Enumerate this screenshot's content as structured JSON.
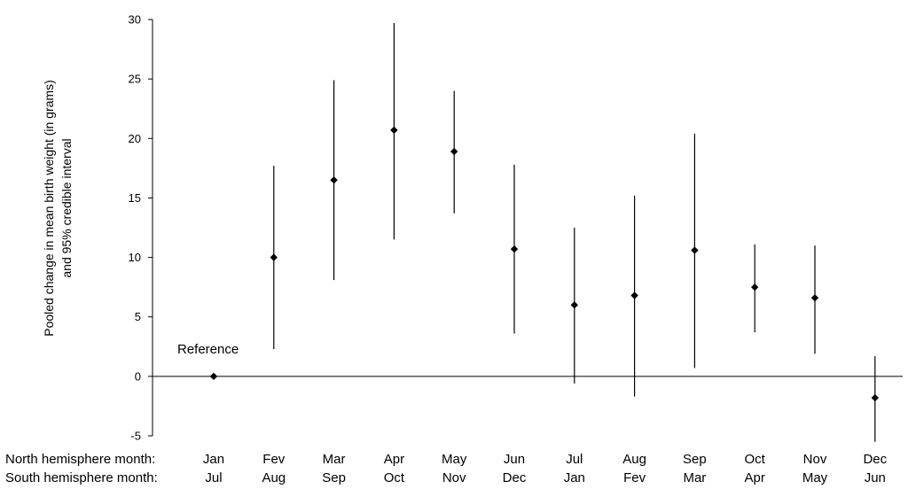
{
  "chart_data": {
    "type": "scatter",
    "xlabel": "",
    "ylabel_line1": "Pooled change in mean birth weight (in grams)",
    "ylabel_line2": "and  95% credible interval",
    "ylim": [
      -5,
      30
    ],
    "yticks": [
      -5,
      0,
      5,
      10,
      15,
      20,
      25,
      30
    ],
    "grid": false,
    "row_labels": {
      "north": "North hemisphere month:",
      "south": "South hemisphere month:"
    },
    "categories_north": [
      "Jan",
      "Fev",
      "Mar",
      "Apr",
      "May",
      "Jun",
      "Jul",
      "Aug",
      "Sep",
      "Oct",
      "Nov",
      "Dec"
    ],
    "categories_south": [
      "Jul",
      "Aug",
      "Sep",
      "Oct",
      "Nov",
      "Dec",
      "Jan",
      "Fev",
      "Mar",
      "Apr",
      "May",
      "Jun"
    ],
    "series": [
      {
        "values": [
          0,
          10.0,
          16.5,
          20.7,
          18.9,
          10.7,
          6.0,
          6.8,
          10.6,
          7.5,
          6.6,
          -1.8
        ],
        "lower": [
          null,
          2.3,
          8.1,
          11.5,
          13.7,
          3.6,
          -0.6,
          -1.7,
          0.7,
          3.7,
          1.9,
          -5.5
        ],
        "upper": [
          null,
          17.7,
          24.9,
          29.7,
          24.0,
          17.8,
          12.5,
          15.2,
          20.4,
          11.1,
          11.0,
          1.7
        ]
      }
    ],
    "annotation": "Reference",
    "marker_color": "#000000"
  }
}
